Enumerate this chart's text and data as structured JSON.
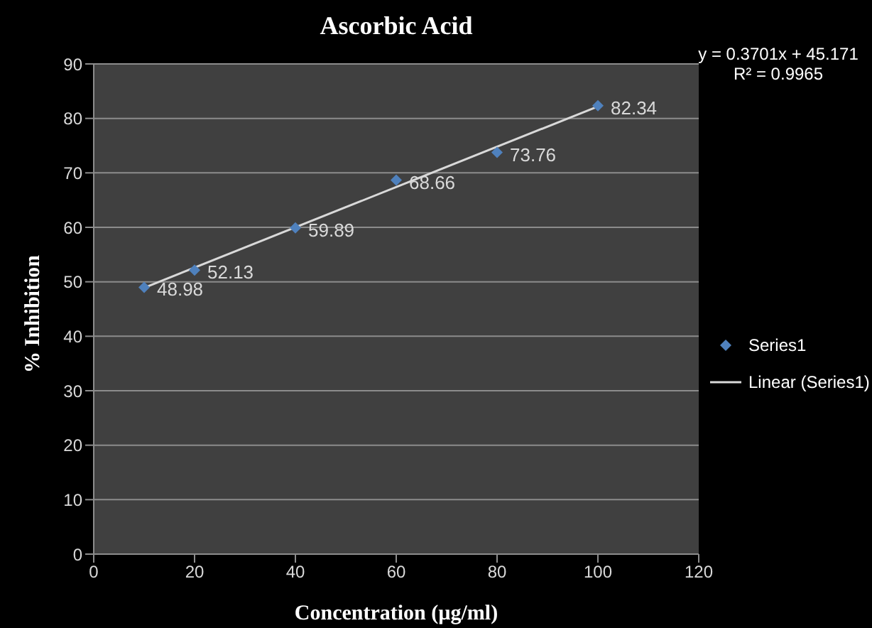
{
  "chart_data": {
    "type": "scatter",
    "title": "Ascorbic Acid",
    "xlabel": "Concentration (µg/ml)",
    "ylabel": "% Inhibition",
    "x": [
      10,
      20,
      40,
      60,
      80,
      100
    ],
    "series": [
      {
        "name": "Series1",
        "marker": "diamond",
        "color": "#4f81bd",
        "values": [
          48.98,
          52.13,
          59.89,
          68.66,
          73.76,
          82.34
        ],
        "value_labels": [
          "48.98",
          "52.13",
          "59.89",
          "68.66",
          "73.76",
          "82.34"
        ]
      },
      {
        "name": "Linear (Series1)",
        "type": "line",
        "color": "#d9d9d9",
        "x": [
          10,
          100
        ],
        "values": [
          48.9,
          82.2
        ],
        "marker": "none"
      }
    ],
    "annotations": [
      "y = 0.3701x + 45.171",
      "R² = 0.9965"
    ],
    "xlim": [
      0,
      120
    ],
    "xticks": [
      0,
      20,
      40,
      60,
      80,
      100,
      120
    ],
    "ylim": [
      0,
      90
    ],
    "yticks": [
      0,
      10,
      20,
      30,
      40,
      50,
      60,
      70,
      80,
      90
    ],
    "grid": "y",
    "legend": "right"
  }
}
